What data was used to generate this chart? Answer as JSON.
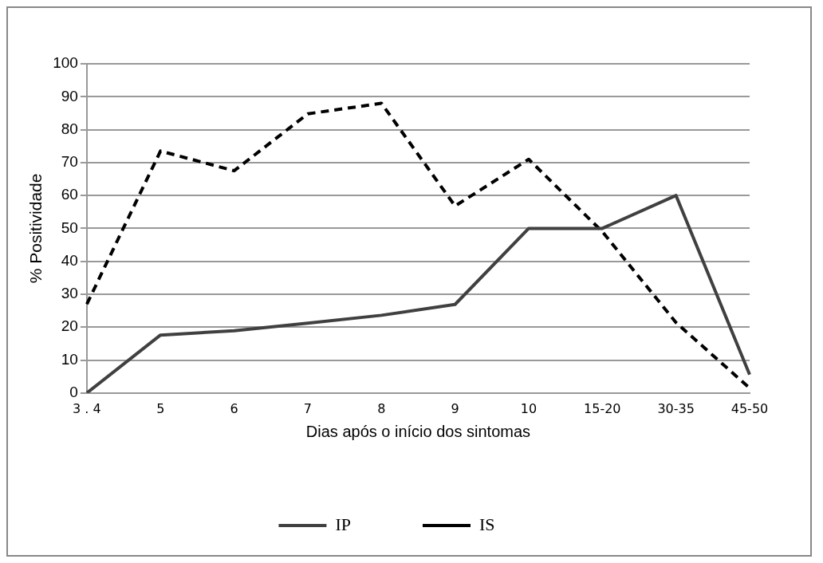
{
  "chart_data": {
    "type": "line",
    "xlabel": "Dias após o início dos sintomas",
    "ylabel": "% Positividade",
    "categories": [
      "3 . 4",
      "5",
      "6",
      "7",
      "8",
      "9",
      "10",
      "15-20",
      "30-35",
      "45-50"
    ],
    "series": [
      {
        "name": "IP",
        "color": "#404040",
        "line_style": "solid",
        "values": [
          0,
          17.6,
          18.9,
          21.2,
          23.6,
          26.9,
          50,
          50,
          60,
          5.6
        ]
      },
      {
        "name": "IS",
        "color": "#000000",
        "line_style": "dashed",
        "values": [
          27,
          73.5,
          67.5,
          84.8,
          88,
          56.8,
          71,
          49,
          21.4,
          1.5
        ]
      }
    ],
    "ylim": [
      0,
      100
    ],
    "yticks": [
      0,
      10,
      20,
      30,
      40,
      50,
      60,
      70,
      80,
      90,
      100
    ],
    "grid": "y",
    "legend": "bottom",
    "marker": "none"
  }
}
